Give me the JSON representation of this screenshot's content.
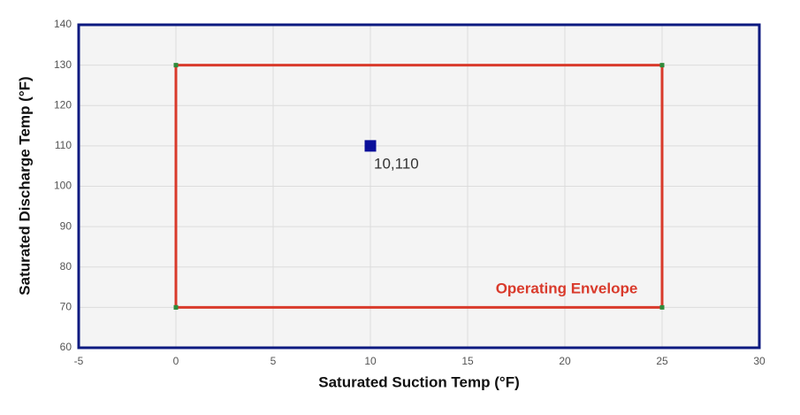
{
  "chart_data": {
    "type": "scatter",
    "x_label": "Saturated Suction Temp (°F)",
    "y_label": "Saturated Discharge Temp (°F)",
    "xlim": [
      -5,
      30
    ],
    "xticks": [
      -5,
      0,
      5,
      10,
      15,
      20,
      25,
      30
    ],
    "ylim": [
      60,
      140
    ],
    "yticks": [
      60,
      70,
      80,
      90,
      100,
      110,
      120,
      130,
      140
    ],
    "grid": true,
    "series": [
      {
        "name": "Operating Envelope",
        "color": "#d93a2b",
        "marker_color": "#2e8b3a",
        "line": true,
        "x": [
          0,
          25,
          25,
          0,
          0
        ],
        "values": [
          70,
          70,
          130,
          130,
          70
        ]
      },
      {
        "color": "#0a0f9a",
        "line": false,
        "x": [
          10
        ],
        "values": [
          110
        ],
        "value_labels": [
          "10,110"
        ]
      }
    ]
  }
}
